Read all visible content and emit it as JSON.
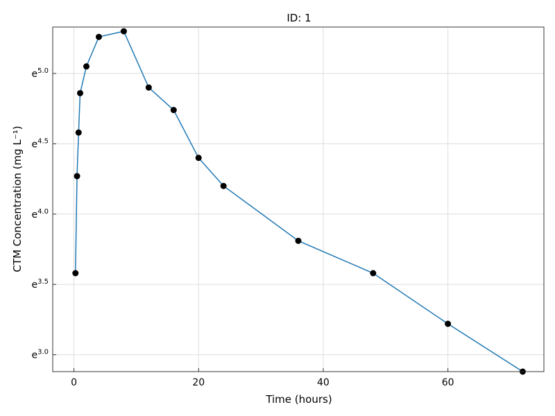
{
  "chart_data": {
    "type": "line",
    "title": "ID: 1",
    "xlabel": "Time (hours)",
    "ylabel": "CTM Concentration (mg L⁻¹)",
    "xlim": [
      -3.4,
      75.4
    ],
    "ylim": [
      2.88,
      5.33
    ],
    "y_scale": "log (base e)",
    "grid": true,
    "colors": {
      "line": "#1f77b4",
      "marker": "#000000",
      "grid": "#dddddd",
      "frame": "#333333"
    },
    "x_ticks": [
      {
        "value": 0,
        "label": "0"
      },
      {
        "value": 20,
        "label": "20"
      },
      {
        "value": 40,
        "label": "40"
      },
      {
        "value": 60,
        "label": "60"
      }
    ],
    "y_ticks": [
      {
        "value": 3.0,
        "label": "e",
        "exp": "3.0"
      },
      {
        "value": 3.5,
        "label": "e",
        "exp": "3.5"
      },
      {
        "value": 4.0,
        "label": "e",
        "exp": "4.0"
      },
      {
        "value": 4.5,
        "label": "e",
        "exp": "4.5"
      },
      {
        "value": 5.0,
        "label": "e",
        "exp": "5.0"
      }
    ],
    "series": [
      {
        "x": [
          0.25,
          0.5,
          0.75,
          1,
          2,
          4,
          8,
          12,
          16,
          20,
          24,
          36,
          48,
          60,
          72
        ],
        "y": [
          3.58,
          4.27,
          4.58,
          4.86,
          5.05,
          5.26,
          5.3,
          4.9,
          4.74,
          4.4,
          4.2,
          3.81,
          3.58,
          3.22,
          2.88
        ]
      }
    ]
  }
}
